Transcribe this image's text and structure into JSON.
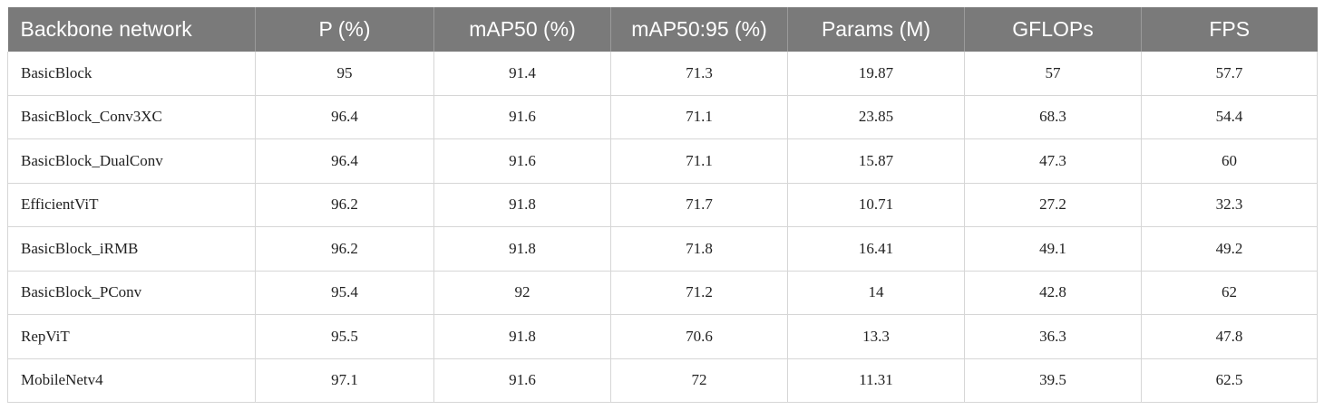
{
  "table": {
    "headers": [
      "Backbone network",
      "P (%)",
      "mAP50 (%)",
      "mAP50:95 (%)",
      "Params (M)",
      "GFLOPs",
      "FPS"
    ],
    "rows": [
      [
        "BasicBlock",
        "95",
        "91.4",
        "71.3",
        "19.87",
        "57",
        "57.7"
      ],
      [
        "BasicBlock_Conv3XC",
        "96.4",
        "91.6",
        "71.1",
        "23.85",
        "68.3",
        "54.4"
      ],
      [
        "BasicBlock_DualConv",
        "96.4",
        "91.6",
        "71.1",
        "15.87",
        "47.3",
        "60"
      ],
      [
        "EfficientViT",
        "96.2",
        "91.8",
        "71.7",
        "10.71",
        "27.2",
        "32.3"
      ],
      [
        "BasicBlock_iRMB",
        "96.2",
        "91.8",
        "71.8",
        "16.41",
        "49.1",
        "49.2"
      ],
      [
        "BasicBlock_PConv",
        "95.4",
        "92",
        "71.2",
        "14",
        "42.8",
        "62"
      ],
      [
        "RepViT",
        "95.5",
        "91.8",
        "70.6",
        "13.3",
        "36.3",
        "47.8"
      ],
      [
        "MobileNetv4",
        "97.1",
        "91.6",
        "72",
        "11.31",
        "39.5",
        "62.5"
      ]
    ]
  },
  "colors": {
    "header_bg": "#7a7a7a",
    "header_text": "#ffffff",
    "grid": "#d6d6d6"
  }
}
